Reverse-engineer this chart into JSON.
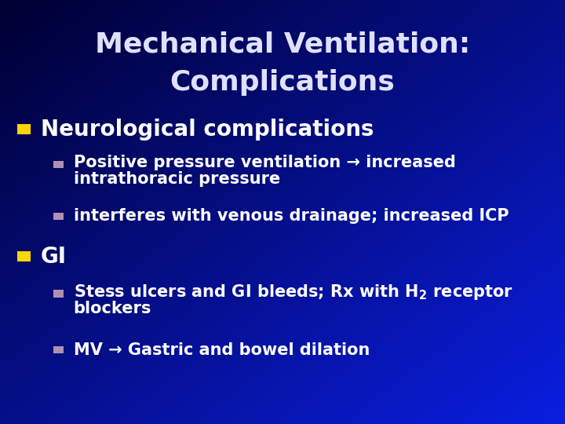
{
  "title_line1": "Mechanical Ventilation:",
  "title_line2": "Complications",
  "title_color": "#E0E0FF",
  "title_fontsize": 26,
  "bullet1_text": "Neurological complications",
  "bullet1_color": "#FFFFFF",
  "bullet1_fontsize": 20,
  "bullet1_marker_color": "#FFD700",
  "sub_bullets_1_line1": "Positive pressure ventilation → increased",
  "sub_bullets_1_line2": "intrathoracic pressure",
  "sub_bullets_1_b": "interferes with venous drainage; increased ICP",
  "bullet2_text": "GI",
  "bullet2_color": "#FFFFFF",
  "bullet2_fontsize": 20,
  "bullet2_marker_color": "#FFD700",
  "sub_bullet2_line1": "Stess ulcers and GI bleeds; Rx with $\\mathregular{H_2}$ receptor",
  "sub_bullet2_line2": "blockers",
  "sub_bullet2_b": "MV → Gastric and bowel dilation",
  "sub_bullet_color": "#FFFFFF",
  "sub_bullet_marker_color": "#B090B0",
  "sub_bullet_fontsize": 15,
  "bg_top": "#000033",
  "bg_bottom": "#0033CC"
}
